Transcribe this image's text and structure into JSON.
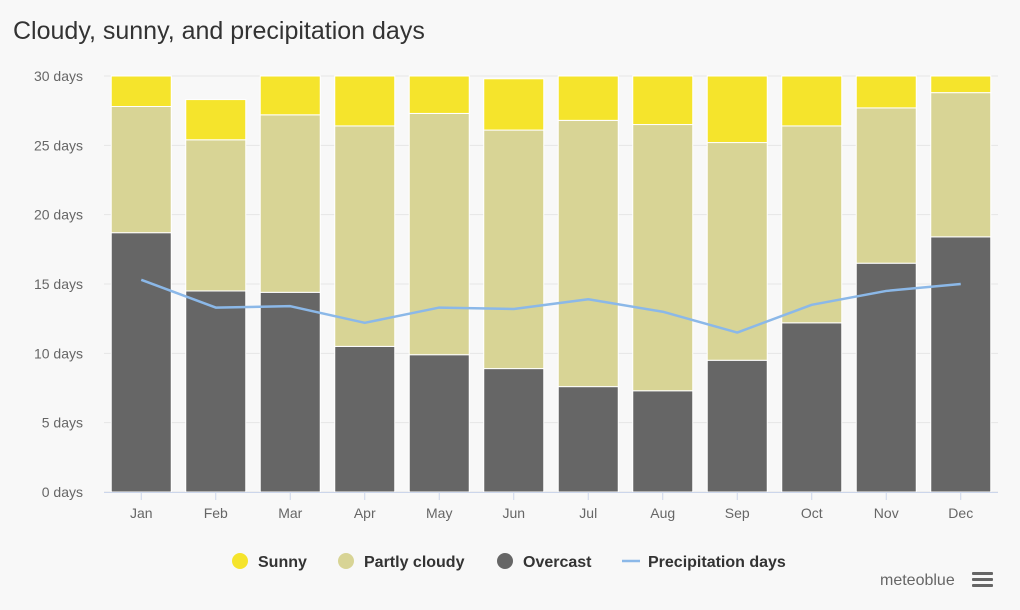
{
  "chart_data": {
    "type": "bar",
    "stacked": true,
    "title": "Cloudy, sunny, and precipitation days",
    "categories": [
      "Jan",
      "Feb",
      "Mar",
      "Apr",
      "May",
      "Jun",
      "Jul",
      "Aug",
      "Sep",
      "Oct",
      "Nov",
      "Dec"
    ],
    "ylim": [
      0,
      30
    ],
    "yticks": [
      0,
      5,
      10,
      15,
      20,
      25,
      30
    ],
    "ytick_suffix": " days",
    "grid": true,
    "legend_position": "bottom-center",
    "series": [
      {
        "name": "Overcast",
        "color": "#666666",
        "kind": "bar",
        "values": [
          18.7,
          14.5,
          14.4,
          10.5,
          9.9,
          8.9,
          7.6,
          7.3,
          9.5,
          12.2,
          16.5,
          18.4
        ]
      },
      {
        "name": "Partly cloudy",
        "color": "#d8d495",
        "kind": "bar",
        "values": [
          9.1,
          10.9,
          12.8,
          15.9,
          17.4,
          17.2,
          19.2,
          19.2,
          15.7,
          14.2,
          11.2,
          10.4
        ]
      },
      {
        "name": "Sunny",
        "color": "#f5e42c",
        "kind": "bar",
        "values": [
          2.2,
          2.9,
          2.8,
          3.6,
          2.7,
          3.7,
          3.2,
          3.5,
          4.8,
          3.6,
          2.3,
          1.2
        ]
      },
      {
        "name": "Precipitation days",
        "color": "#8bb8e8",
        "kind": "line",
        "values": [
          15.3,
          13.3,
          13.4,
          12.2,
          13.3,
          13.2,
          13.9,
          13.0,
          11.5,
          13.5,
          14.5,
          15.0
        ]
      }
    ],
    "legend_order": [
      "Sunny",
      "Partly cloudy",
      "Overcast",
      "Precipitation days"
    ]
  },
  "credit": "meteoblue",
  "icons": {
    "menu": "hamburger-menu-icon"
  }
}
